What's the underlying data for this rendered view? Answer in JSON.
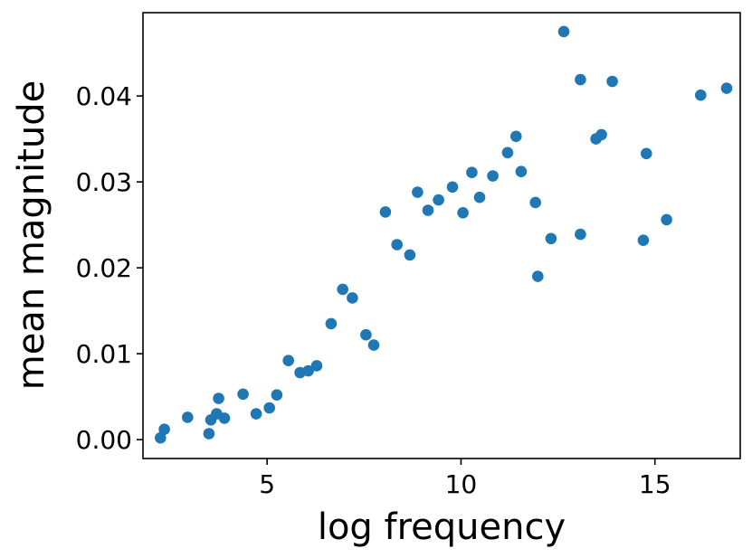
{
  "chart_data": {
    "type": "scatter",
    "xlabel": "log frequency",
    "ylabel": "mean magnitude",
    "xlim": [
      1.8,
      17.2
    ],
    "ylim": [
      -0.0022,
      0.0497
    ],
    "xticks": [
      5,
      10,
      15
    ],
    "xtick_labels": [
      "5",
      "10",
      "15"
    ],
    "yticks": [
      0.0,
      0.01,
      0.02,
      0.03,
      0.04
    ],
    "ytick_labels": [
      "0.00",
      "0.01",
      "0.02",
      "0.03",
      "0.04"
    ],
    "grid": false,
    "legend": "none",
    "marker_color": "#1f77b4",
    "series": [
      {
        "points": [
          [
            2.25,
            0.0002
          ],
          [
            2.35,
            0.0012
          ],
          [
            2.95,
            0.0026
          ],
          [
            3.5,
            0.0007
          ],
          [
            3.55,
            0.0023
          ],
          [
            3.7,
            0.003
          ],
          [
            3.75,
            0.0048
          ],
          [
            3.9,
            0.0025
          ],
          [
            4.38,
            0.0053
          ],
          [
            4.72,
            0.003
          ],
          [
            5.06,
            0.0037
          ],
          [
            5.25,
            0.0052
          ],
          [
            5.55,
            0.0092
          ],
          [
            5.85,
            0.0078
          ],
          [
            6.06,
            0.008
          ],
          [
            6.28,
            0.0086
          ],
          [
            6.65,
            0.0135
          ],
          [
            6.95,
            0.0175
          ],
          [
            7.2,
            0.0165
          ],
          [
            7.55,
            0.0122
          ],
          [
            7.75,
            0.011
          ],
          [
            8.05,
            0.0265
          ],
          [
            8.35,
            0.0227
          ],
          [
            8.68,
            0.0215
          ],
          [
            8.88,
            0.0288
          ],
          [
            9.15,
            0.0267
          ],
          [
            9.42,
            0.0279
          ],
          [
            9.78,
            0.0294
          ],
          [
            10.05,
            0.0264
          ],
          [
            10.28,
            0.0311
          ],
          [
            10.48,
            0.0282
          ],
          [
            10.82,
            0.0307
          ],
          [
            11.2,
            0.0334
          ],
          [
            11.42,
            0.0353
          ],
          [
            11.55,
            0.0312
          ],
          [
            11.92,
            0.0276
          ],
          [
            11.98,
            0.019
          ],
          [
            12.32,
            0.0234
          ],
          [
            12.65,
            0.0475
          ],
          [
            13.08,
            0.0419
          ],
          [
            13.08,
            0.0239
          ],
          [
            13.48,
            0.035
          ],
          [
            13.62,
            0.0355
          ],
          [
            13.9,
            0.0417
          ],
          [
            14.7,
            0.0232
          ],
          [
            14.78,
            0.0333
          ],
          [
            15.3,
            0.0256
          ],
          [
            16.18,
            0.0401
          ],
          [
            16.85,
            0.0409
          ]
        ]
      }
    ]
  }
}
